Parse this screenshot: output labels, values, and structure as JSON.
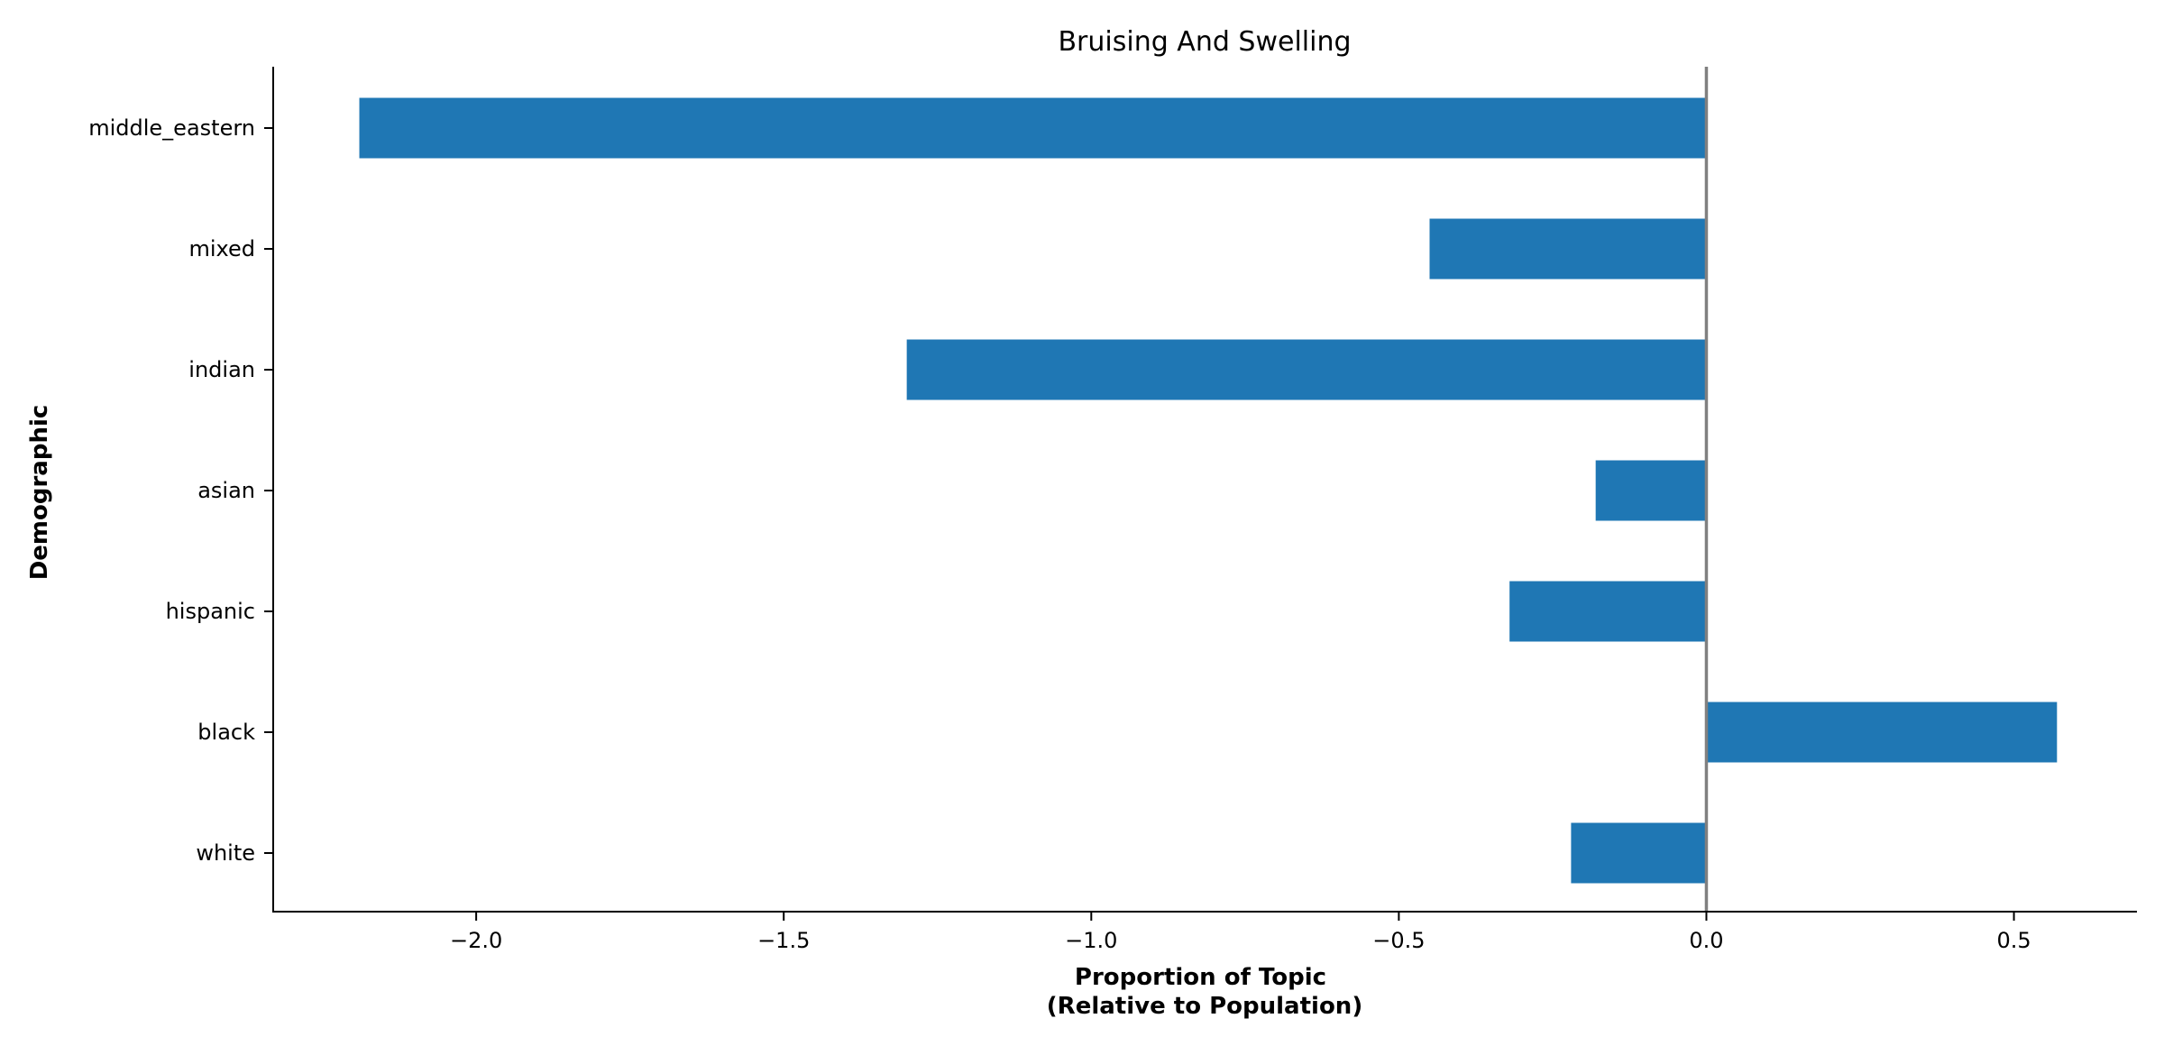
{
  "chart_data": {
    "type": "bar",
    "orientation": "horizontal",
    "title": "Bruising And Swelling",
    "xlabel": [
      "Proportion of Topic",
      "(Relative to Population)"
    ],
    "ylabel": "Demographic",
    "categories": [
      "middle_eastern",
      "mixed",
      "indian",
      "asian",
      "hispanic",
      "black",
      "white"
    ],
    "values": [
      -2.19,
      -0.45,
      -1.3,
      -0.18,
      -0.32,
      0.57,
      -0.22
    ],
    "xlim": [
      -2.33,
      0.7
    ],
    "xticks": [
      -2.0,
      -1.5,
      -1.0,
      -0.5,
      0.0,
      0.5
    ],
    "xtick_labels": [
      "−2.0",
      "−1.5",
      "−1.0",
      "−0.5",
      "0.0",
      "0.5"
    ],
    "bar_color": "#1f77b4",
    "zero_line_color": "#808080",
    "grid": false,
    "legend": "none"
  }
}
